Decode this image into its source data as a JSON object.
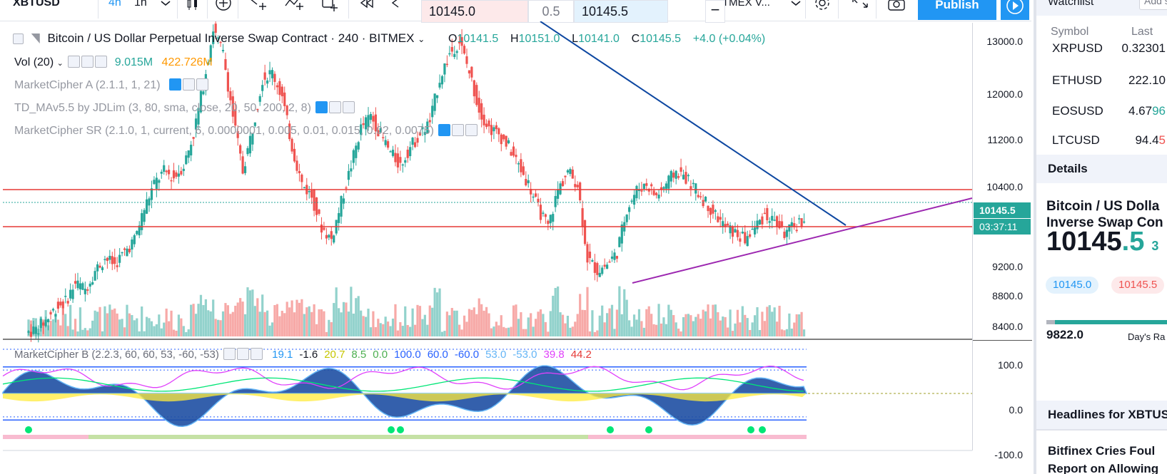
{
  "toolbar": {
    "symbol": "XBTUSD",
    "interval_4h": "4h",
    "interval_1h": "1h",
    "chart_label": "TMEX V...",
    "publish_label": "Publish"
  },
  "quote_popups": {
    "sell_price": "10145.0",
    "spread": "0.5",
    "buy_price": "10145.5"
  },
  "legend": {
    "title": "Bitcoin / US Dollar Perpetual Inverse Swap Contract · 240 · BITMEX",
    "open_label": "O",
    "open": "10141.5",
    "high_label": "H",
    "high": "10151.0",
    "low_label": "L",
    "low": "10141.0",
    "close_label": "C",
    "close": "10145.5",
    "change": "+4.0 (+0.04%)",
    "vol_label": "Vol (20)",
    "vol_value1": "9.015M",
    "vol_value2": "422.726M",
    "ind1": "MarketCipher A (2.1.1, 1, 21)",
    "ind2": "TD_MAv5.5 by JDLim (3, 80, sma, close, 20, 50, 200, 2, 8)",
    "ind3": "MarketCipher SR (2.1.0, 1, current, 6, 0.0000001, 0.005, 0.01, 0.015, 0.02, 0.0075)",
    "mcb": "MarketCipher B (2.2.3, 60, 60, 53, -60, -53)",
    "mcb_vals": [
      "19.1",
      "-1.6",
      "20.7",
      "8.5",
      "0.0",
      "100.0",
      "60.0",
      "-60.0",
      "53.0",
      "-53.0",
      "39.8",
      "44.2"
    ]
  },
  "price_axis": {
    "labels": [
      "13000.0",
      "12000.0",
      "11200.0",
      "10400.0",
      "9200.0",
      "8800.0",
      "8400.0"
    ],
    "last_price": "10145.5",
    "countdown": "03:37:11",
    "osc_labels": [
      "100.0",
      "0.0",
      "-100.0"
    ]
  },
  "chart_data": {
    "type": "candlestick",
    "title": "Bitcoin / US Dollar Perpetual Inverse Swap Contract · 240 · BITMEX",
    "price_axis": [
      8400,
      8800,
      9200,
      10400,
      11200,
      12000,
      13000
    ],
    "colors": {
      "up": "#26a69a",
      "down": "#ef5350",
      "trend_down": "#0d47a1",
      "trend_up": "#9c27b0",
      "level": "#e53935"
    },
    "levels": [
      10400,
      9700
    ],
    "last": 10145.5,
    "close_series": [
      8300,
      8350,
      8500,
      8700,
      8800,
      9100,
      9000,
      9300,
      9500,
      9400,
      9600,
      9800,
      10300,
      10700,
      10900,
      10800,
      11000,
      11500,
      12300,
      13200,
      12800,
      11800,
      10900,
      11600,
      12400,
      12500,
      12100,
      11300,
      10700,
      10500,
      10000,
      9800,
      10400,
      11000,
      11600,
      11800,
      11500,
      11200,
      11000,
      11300,
      11500,
      11700,
      12400,
      12800,
      13000,
      12500,
      11900,
      11600,
      11500,
      11300,
      11000,
      10700,
      10300,
      10000,
      10600,
      10900,
      10700,
      9500,
      9300,
      9400,
      9600,
      10300,
      10600,
      10700,
      10500,
      10700,
      10900,
      10800,
      10600,
      10400,
      10200,
      10000,
      9900,
      9800,
      10000,
      10200,
      10100,
      9900,
      10000,
      10145
    ]
  },
  "sidebar": {
    "watchlist": "Watchlist",
    "add": "Add s",
    "col_symbol": "Symbol",
    "col_last": "Last",
    "rows": [
      {
        "symbol": "XRPUSD",
        "last": "0.32301"
      },
      {
        "symbol": "ETHUSD",
        "last": "222.10"
      },
      {
        "symbol": "EOSUSD",
        "last_main": "4.67",
        "last_tail": "96"
      },
      {
        "symbol": "LTCUSD",
        "last_main": "94.4",
        "last_tail": "5"
      }
    ],
    "details": "Details",
    "name_line1": "Bitcoin / US Dolla",
    "name_line2": "Inverse Swap Con",
    "price_main": "10145",
    "price_tail": ".5",
    "price_suffix": "3",
    "bid": "10145.0",
    "ask": "10145.5",
    "low": "9822.0",
    "days_range": "Day's Ra",
    "headlines": "Headlines for XBTUS",
    "news1": "Bitfinex Cries Foul",
    "news2": "Report on Allowing"
  }
}
